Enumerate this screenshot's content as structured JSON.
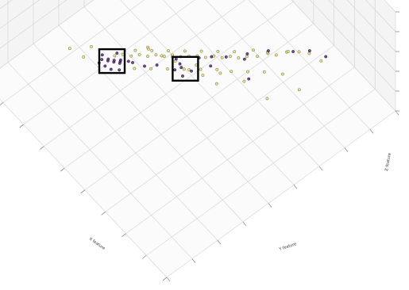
{
  "chart_data": {
    "type": "scatter",
    "projection": "3d",
    "title": "",
    "xlabel": "X feature",
    "ylabel": "Y feature",
    "zlabel": "Z feature",
    "grid": true,
    "legend": "none",
    "colors": {
      "class_a": "#e8e27a",
      "class_b": "#5b2d7e",
      "highlight_box": "#000000",
      "pane": "#f4f4f4",
      "grid": "#d2d2d2"
    },
    "series": [
      {
        "points": [
          [
            0.18,
            0.82,
            0.45
          ],
          [
            0.22,
            0.8,
            0.48
          ],
          [
            0.25,
            0.78,
            0.47
          ],
          [
            0.28,
            0.75,
            0.46
          ],
          [
            0.3,
            0.72,
            0.44
          ],
          [
            0.32,
            0.7,
            0.45
          ],
          [
            0.34,
            0.67,
            0.43
          ],
          [
            0.36,
            0.64,
            0.44
          ],
          [
            0.38,
            0.62,
            0.42
          ],
          [
            0.4,
            0.6,
            0.43
          ],
          [
            0.42,
            0.58,
            0.41
          ],
          [
            0.44,
            0.56,
            0.42
          ],
          [
            0.46,
            0.54,
            0.4
          ],
          [
            0.48,
            0.52,
            0.41
          ],
          [
            0.5,
            0.5,
            0.4
          ],
          [
            0.52,
            0.48,
            0.39
          ],
          [
            0.54,
            0.46,
            0.4
          ],
          [
            0.56,
            0.44,
            0.38
          ],
          [
            0.58,
            0.42,
            0.39
          ],
          [
            0.6,
            0.4,
            0.37
          ],
          [
            0.62,
            0.38,
            0.38
          ],
          [
            0.64,
            0.36,
            0.36
          ],
          [
            0.66,
            0.34,
            0.37
          ],
          [
            0.68,
            0.32,
            0.35
          ],
          [
            0.26,
            0.74,
            0.52
          ],
          [
            0.31,
            0.69,
            0.5
          ],
          [
            0.35,
            0.66,
            0.49
          ],
          [
            0.39,
            0.61,
            0.48
          ],
          [
            0.43,
            0.57,
            0.47
          ],
          [
            0.47,
            0.53,
            0.46
          ],
          [
            0.51,
            0.49,
            0.45
          ],
          [
            0.55,
            0.45,
            0.44
          ],
          [
            0.59,
            0.41,
            0.43
          ],
          [
            0.63,
            0.37,
            0.42
          ],
          [
            0.24,
            0.7,
            0.4
          ],
          [
            0.29,
            0.66,
            0.39
          ],
          [
            0.33,
            0.62,
            0.38
          ],
          [
            0.37,
            0.58,
            0.37
          ],
          [
            0.41,
            0.55,
            0.36
          ],
          [
            0.45,
            0.51,
            0.35
          ],
          [
            0.49,
            0.47,
            0.34
          ],
          [
            0.53,
            0.43,
            0.33
          ],
          [
            0.57,
            0.39,
            0.32
          ],
          [
            0.61,
            0.35,
            0.31
          ],
          [
            0.35,
            0.5,
            0.42
          ],
          [
            0.4,
            0.48,
            0.44
          ],
          [
            0.45,
            0.46,
            0.43
          ],
          [
            0.5,
            0.44,
            0.45
          ],
          [
            0.55,
            0.42,
            0.44
          ],
          [
            0.6,
            0.4,
            0.46
          ],
          [
            0.2,
            0.6,
            0.4
          ],
          [
            0.15,
            0.7,
            0.42
          ],
          [
            0.7,
            0.2,
            0.5
          ],
          [
            0.75,
            0.18,
            0.52
          ],
          [
            0.72,
            0.25,
            0.48
          ],
          [
            0.3,
            0.58,
            0.41
          ],
          [
            0.38,
            0.54,
            0.4
          ],
          [
            0.46,
            0.5,
            0.39
          ],
          [
            0.54,
            0.46,
            0.38
          ],
          [
            0.62,
            0.42,
            0.37
          ]
        ]
      },
      {
        "points": [
          [
            0.18,
            0.84,
            0.46
          ],
          [
            0.23,
            0.81,
            0.47
          ],
          [
            0.27,
            0.77,
            0.45
          ],
          [
            0.33,
            0.71,
            0.44
          ],
          [
            0.37,
            0.65,
            0.43
          ],
          [
            0.41,
            0.59,
            0.42
          ],
          [
            0.44,
            0.55,
            0.43
          ],
          [
            0.47,
            0.52,
            0.41
          ],
          [
            0.52,
            0.46,
            0.4
          ],
          [
            0.63,
            0.34,
            0.36
          ],
          [
            0.65,
            0.32,
            0.35
          ],
          [
            0.66,
            0.3,
            0.36
          ],
          [
            0.67,
            0.31,
            0.34
          ],
          [
            0.68,
            0.29,
            0.35
          ],
          [
            0.69,
            0.3,
            0.33
          ],
          [
            0.7,
            0.28,
            0.34
          ],
          [
            0.66,
            0.33,
            0.33
          ],
          [
            0.67,
            0.27,
            0.35
          ],
          [
            0.64,
            0.31,
            0.37
          ],
          [
            0.69,
            0.26,
            0.36
          ],
          [
            0.65,
            0.28,
            0.34
          ],
          [
            0.68,
            0.33,
            0.36
          ],
          [
            0.62,
            0.35,
            0.35
          ],
          [
            0.71,
            0.29,
            0.35
          ],
          [
            0.63,
            0.3,
            0.34
          ],
          [
            0.45,
            0.47,
            0.4
          ],
          [
            0.48,
            0.45,
            0.41
          ],
          [
            0.5,
            0.46,
            0.39
          ],
          [
            0.46,
            0.44,
            0.38
          ],
          [
            0.49,
            0.43,
            0.4
          ],
          [
            0.3,
            0.6,
            0.4
          ],
          [
            0.55,
            0.4,
            0.38
          ],
          [
            0.58,
            0.37,
            0.36
          ],
          [
            0.36,
            0.63,
            0.43
          ],
          [
            0.42,
            0.53,
            0.41
          ]
        ]
      }
    ],
    "highlights": [
      {
        "center": [
          0.47,
          0.46,
          0.4
        ]
      },
      {
        "center": [
          0.67,
          0.3,
          0.35
        ]
      }
    ]
  }
}
